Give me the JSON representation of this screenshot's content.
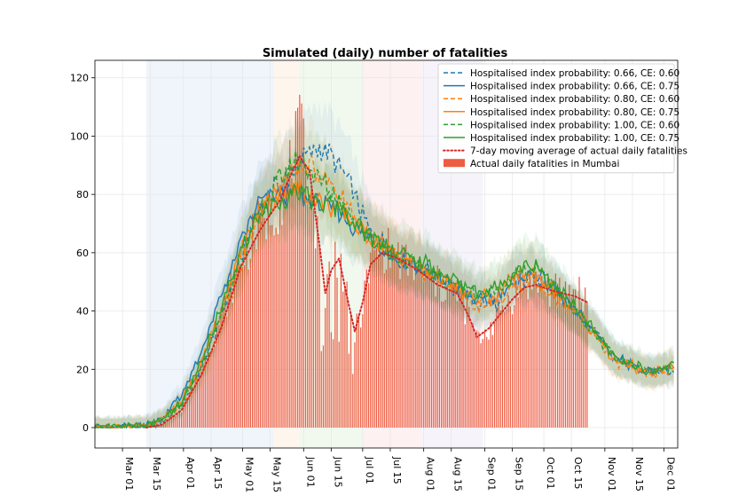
{
  "chart_data": {
    "type": "line",
    "title": "Simulated (daily) number of fatalities",
    "xlabel": "",
    "ylabel": "",
    "ylim": [
      -7,
      126
    ],
    "grid": true,
    "legend_position": "top-right",
    "x_ticks": [
      {
        "label": "Mar 01",
        "day": 0
      },
      {
        "label": "Mar 15",
        "day": 14
      },
      {
        "label": "Apr 01",
        "day": 31
      },
      {
        "label": "Apr 15",
        "day": 45
      },
      {
        "label": "May 01",
        "day": 61
      },
      {
        "label": "May 15",
        "day": 75
      },
      {
        "label": "Jun 01",
        "day": 92
      },
      {
        "label": "Jun 15",
        "day": 106
      },
      {
        "label": "Jul 01",
        "day": 122
      },
      {
        "label": "Jul 15",
        "day": 136
      },
      {
        "label": "Aug 01",
        "day": 153
      },
      {
        "label": "Aug 15",
        "day": 167
      },
      {
        "label": "Sep 01",
        "day": 184
      },
      {
        "label": "Sep 15",
        "day": 198
      },
      {
        "label": "Oct 01",
        "day": 214
      },
      {
        "label": "Oct 15",
        "day": 228
      },
      {
        "label": "Nov 01",
        "day": 245
      },
      {
        "label": "Nov 15",
        "day": 259
      },
      {
        "label": "Dec 01",
        "day": 275
      }
    ],
    "y_ticks": [
      0,
      20,
      40,
      60,
      80,
      100,
      120
    ],
    "phase_bands": [
      {
        "start": 12,
        "end": 77,
        "color": "#dbe9f6"
      },
      {
        "start": 77,
        "end": 90,
        "color": "#fde9d6"
      },
      {
        "start": 90,
        "end": 122,
        "color": "#dff1dc"
      },
      {
        "start": 122,
        "end": 152,
        "color": "#fbe0e0"
      },
      {
        "start": 152,
        "end": 183,
        "color": "#ece6f4"
      }
    ],
    "x_domain": [
      -14,
      282
    ],
    "series": [
      {
        "name": "Hospitalised index probability: 0.66, CE: 0.60",
        "color": "#1f77b4",
        "style": "dashed",
        "anchors": [
          [
            -14,
            0
          ],
          [
            10,
            0.5
          ],
          [
            20,
            2
          ],
          [
            30,
            8
          ],
          [
            40,
            20
          ],
          [
            50,
            38
          ],
          [
            60,
            58
          ],
          [
            70,
            76
          ],
          [
            80,
            84
          ],
          [
            90,
            92
          ],
          [
            100,
            96
          ],
          [
            105,
            94
          ],
          [
            115,
            84
          ],
          [
            125,
            68
          ],
          [
            140,
            58
          ],
          [
            155,
            54
          ],
          [
            170,
            47
          ],
          [
            180,
            42
          ],
          [
            190,
            42
          ],
          [
            200,
            50
          ],
          [
            210,
            52
          ],
          [
            220,
            45
          ],
          [
            230,
            40
          ],
          [
            240,
            33
          ],
          [
            250,
            24
          ],
          [
            260,
            21
          ],
          [
            270,
            19
          ],
          [
            280,
            20
          ]
        ]
      },
      {
        "name": "Hospitalised index probability: 0.66, CE: 0.75",
        "color": "#1f77b4",
        "style": "solid",
        "anchors": [
          [
            -14,
            0
          ],
          [
            10,
            0.6
          ],
          [
            20,
            3
          ],
          [
            30,
            11
          ],
          [
            40,
            26
          ],
          [
            50,
            45
          ],
          [
            60,
            63
          ],
          [
            70,
            78
          ],
          [
            80,
            80
          ],
          [
            90,
            80
          ],
          [
            100,
            77
          ],
          [
            110,
            74
          ],
          [
            125,
            65
          ],
          [
            140,
            58
          ],
          [
            155,
            53
          ],
          [
            170,
            48
          ],
          [
            180,
            43
          ],
          [
            190,
            45
          ],
          [
            200,
            51
          ],
          [
            210,
            53
          ],
          [
            220,
            47
          ],
          [
            230,
            40
          ],
          [
            240,
            33
          ],
          [
            250,
            24
          ],
          [
            260,
            21
          ],
          [
            270,
            19
          ],
          [
            280,
            21
          ]
        ]
      },
      {
        "name": "Hospitalised index probability: 0.80, CE: 0.60",
        "color": "#ff7f0e",
        "style": "dashed",
        "anchors": [
          [
            -14,
            0
          ],
          [
            10,
            0.4
          ],
          [
            20,
            2
          ],
          [
            30,
            7
          ],
          [
            40,
            18
          ],
          [
            50,
            35
          ],
          [
            60,
            55
          ],
          [
            70,
            72
          ],
          [
            80,
            84
          ],
          [
            90,
            90
          ],
          [
            100,
            88
          ],
          [
            110,
            80
          ],
          [
            125,
            66
          ],
          [
            140,
            58
          ],
          [
            155,
            53
          ],
          [
            170,
            47
          ],
          [
            180,
            41
          ],
          [
            190,
            43
          ],
          [
            200,
            49
          ],
          [
            210,
            50
          ],
          [
            220,
            44
          ],
          [
            230,
            39
          ],
          [
            240,
            32
          ],
          [
            250,
            23
          ],
          [
            260,
            20
          ],
          [
            270,
            18
          ],
          [
            280,
            20
          ]
        ]
      },
      {
        "name": "Hospitalised index probability: 0.80, CE: 0.75",
        "color": "#ff7f0e",
        "style": "solid",
        "anchors": [
          [
            -14,
            0
          ],
          [
            10,
            0.5
          ],
          [
            20,
            2.5
          ],
          [
            30,
            9
          ],
          [
            40,
            22
          ],
          [
            50,
            40
          ],
          [
            60,
            60
          ],
          [
            70,
            75
          ],
          [
            80,
            80
          ],
          [
            90,
            82
          ],
          [
            100,
            78
          ],
          [
            110,
            74
          ],
          [
            125,
            65
          ],
          [
            140,
            58
          ],
          [
            155,
            53
          ],
          [
            170,
            48
          ],
          [
            180,
            44
          ],
          [
            190,
            46
          ],
          [
            200,
            52
          ],
          [
            210,
            53
          ],
          [
            220,
            46
          ],
          [
            230,
            40
          ],
          [
            240,
            32
          ],
          [
            250,
            23
          ],
          [
            260,
            21
          ],
          [
            270,
            19
          ],
          [
            280,
            22
          ]
        ]
      },
      {
        "name": "Hospitalised index probability: 1.00, CE: 0.60",
        "color": "#2ca02c",
        "style": "dashed",
        "anchors": [
          [
            -14,
            0
          ],
          [
            10,
            0.4
          ],
          [
            20,
            2
          ],
          [
            30,
            8
          ],
          [
            40,
            20
          ],
          [
            50,
            38
          ],
          [
            60,
            57
          ],
          [
            70,
            74
          ],
          [
            80,
            86
          ],
          [
            90,
            92
          ],
          [
            100,
            85
          ],
          [
            110,
            78
          ],
          [
            125,
            66
          ],
          [
            140,
            58
          ],
          [
            155,
            54
          ],
          [
            170,
            49
          ],
          [
            180,
            45
          ],
          [
            190,
            47
          ],
          [
            200,
            53
          ],
          [
            210,
            55
          ],
          [
            220,
            47
          ],
          [
            230,
            40
          ],
          [
            240,
            32
          ],
          [
            250,
            24
          ],
          [
            260,
            21
          ],
          [
            270,
            19
          ],
          [
            280,
            21
          ]
        ]
      },
      {
        "name": "Hospitalised index probability: 1.00, CE: 0.75",
        "color": "#2ca02c",
        "style": "solid",
        "anchors": [
          [
            -14,
            0
          ],
          [
            10,
            0.5
          ],
          [
            20,
            2.5
          ],
          [
            30,
            9
          ],
          [
            40,
            22
          ],
          [
            50,
            41
          ],
          [
            60,
            60
          ],
          [
            70,
            74
          ],
          [
            80,
            78
          ],
          [
            90,
            80
          ],
          [
            100,
            77
          ],
          [
            110,
            75
          ],
          [
            125,
            66
          ],
          [
            140,
            60
          ],
          [
            155,
            56
          ],
          [
            170,
            50
          ],
          [
            180,
            46
          ],
          [
            190,
            48
          ],
          [
            200,
            54
          ],
          [
            210,
            56
          ],
          [
            220,
            49
          ],
          [
            230,
            41
          ],
          [
            240,
            33
          ],
          [
            250,
            24
          ],
          [
            260,
            21
          ],
          [
            270,
            19
          ],
          [
            280,
            23
          ]
        ]
      },
      {
        "name": "7-day moving average of actual daily fatalities",
        "color": "#d62728",
        "style": "dotted",
        "anchors": [
          [
            12,
            0
          ],
          [
            20,
            1
          ],
          [
            30,
            6
          ],
          [
            40,
            18
          ],
          [
            50,
            34
          ],
          [
            60,
            55
          ],
          [
            70,
            68
          ],
          [
            80,
            78
          ],
          [
            85,
            86
          ],
          [
            90,
            93
          ],
          [
            95,
            88
          ],
          [
            100,
            63
          ],
          [
            103,
            46
          ],
          [
            106,
            54
          ],
          [
            110,
            58
          ],
          [
            114,
            45
          ],
          [
            118,
            33
          ],
          [
            122,
            43
          ],
          [
            126,
            56
          ],
          [
            132,
            60
          ],
          [
            140,
            58
          ],
          [
            150,
            54
          ],
          [
            160,
            49
          ],
          [
            170,
            46
          ],
          [
            176,
            38
          ],
          [
            180,
            31
          ],
          [
            186,
            34
          ],
          [
            192,
            39
          ],
          [
            198,
            44
          ],
          [
            204,
            48
          ],
          [
            210,
            49
          ],
          [
            218,
            47
          ],
          [
            224,
            46
          ],
          [
            230,
            45
          ],
          [
            236,
            43
          ]
        ]
      },
      {
        "name": "Actual daily fatalities in Mumbai",
        "color": "#ee5c42",
        "style": "bar",
        "anchors": [
          [
            12,
            0
          ],
          [
            20,
            1
          ],
          [
            30,
            6
          ],
          [
            40,
            20
          ],
          [
            50,
            38
          ],
          [
            60,
            57
          ],
          [
            70,
            70
          ],
          [
            80,
            78
          ],
          [
            85,
            88
          ],
          [
            90,
            101
          ],
          [
            95,
            85
          ],
          [
            100,
            60
          ],
          [
            103,
            45
          ],
          [
            106,
            58
          ],
          [
            110,
            60
          ],
          [
            114,
            44
          ],
          [
            118,
            32
          ],
          [
            122,
            42
          ],
          [
            126,
            57
          ],
          [
            132,
            62
          ],
          [
            140,
            58
          ],
          [
            150,
            54
          ],
          [
            160,
            49
          ],
          [
            170,
            46
          ],
          [
            176,
            38
          ],
          [
            180,
            30
          ],
          [
            186,
            34
          ],
          [
            192,
            40
          ],
          [
            198,
            45
          ],
          [
            204,
            49
          ],
          [
            210,
            50
          ],
          [
            218,
            47
          ],
          [
            224,
            46
          ],
          [
            230,
            47
          ],
          [
            236,
            44
          ]
        ]
      }
    ]
  }
}
